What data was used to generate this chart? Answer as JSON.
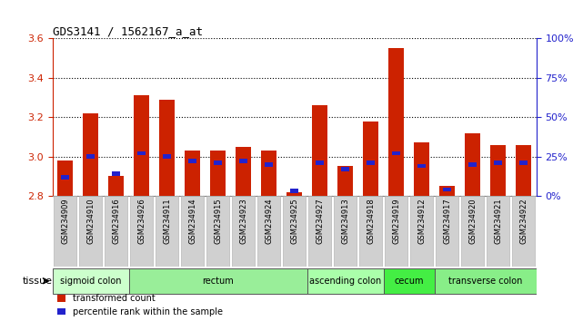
{
  "title": "GDS3141 / 1562167_a_at",
  "samples": [
    "GSM234909",
    "GSM234910",
    "GSM234916",
    "GSM234926",
    "GSM234911",
    "GSM234914",
    "GSM234915",
    "GSM234923",
    "GSM234924",
    "GSM234925",
    "GSM234927",
    "GSM234913",
    "GSM234918",
    "GSM234919",
    "GSM234912",
    "GSM234917",
    "GSM234920",
    "GSM234921",
    "GSM234922"
  ],
  "transformed_count": [
    2.98,
    3.22,
    2.9,
    3.31,
    3.29,
    3.03,
    3.03,
    3.05,
    3.03,
    2.82,
    3.26,
    2.95,
    3.18,
    3.55,
    3.07,
    2.85,
    3.12,
    3.06,
    3.06
  ],
  "percentile_rank_pct": [
    12,
    25,
    14,
    27,
    25,
    22,
    21,
    22,
    20,
    3,
    21,
    17,
    21,
    27,
    19,
    4,
    20,
    21,
    21
  ],
  "ymin": 2.8,
  "ymax": 3.6,
  "yticks": [
    2.8,
    3.0,
    3.2,
    3.4,
    3.6
  ],
  "right_yticks_pct": [
    0,
    25,
    50,
    75,
    100
  ],
  "bar_color_red": "#cc2200",
  "bar_color_blue": "#2222cc",
  "bar_width": 0.6,
  "tissue_groups": [
    {
      "label": "sigmoid colon",
      "start": 0,
      "end": 2,
      "color": "#ccffcc"
    },
    {
      "label": "rectum",
      "start": 3,
      "end": 9,
      "color": "#99ee99"
    },
    {
      "label": "ascending colon",
      "start": 10,
      "end": 12,
      "color": "#aaffaa"
    },
    {
      "label": "cecum",
      "start": 13,
      "end": 14,
      "color": "#44ee44"
    },
    {
      "label": "transverse colon",
      "start": 15,
      "end": 18,
      "color": "#88ee88"
    }
  ],
  "xtick_bg_color": "#d0d0d0",
  "grid_linestyle": "dotted",
  "grid_color": "#000000",
  "plot_bg": "#ffffff",
  "fig_bg": "#ffffff",
  "left_spine_color": "#cc2200",
  "right_spine_color": "#2222cc",
  "title_fontsize": 9,
  "ytick_fontsize": 8,
  "xtick_fontsize": 6,
  "tissue_fontsize": 7,
  "legend_fontsize": 7
}
